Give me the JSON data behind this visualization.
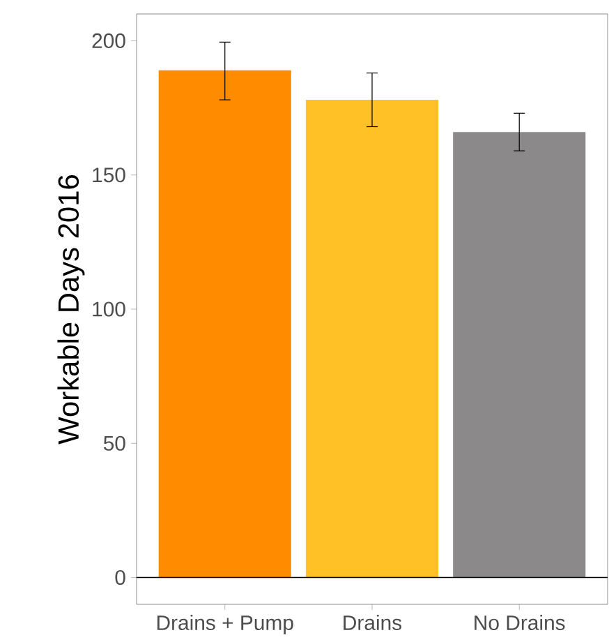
{
  "chart_data": {
    "type": "bar",
    "ylabel": "Workable Days 2016",
    "categories": [
      "Drains + Pump",
      "Drains",
      "No Drains"
    ],
    "values": [
      189,
      178,
      166
    ],
    "errors": [
      [
        178,
        199.5
      ],
      [
        168,
        188
      ],
      [
        159,
        173
      ]
    ],
    "colors": [
      "#ff8c00",
      "#ffc125",
      "#8b8989"
    ],
    "ylim": [
      -10,
      210
    ],
    "yticks": [
      0,
      50,
      100,
      150,
      200
    ],
    "ref_lines": [
      {
        "axis": "y",
        "value": 0,
        "color": "#000000"
      }
    ],
    "grid": false
  }
}
